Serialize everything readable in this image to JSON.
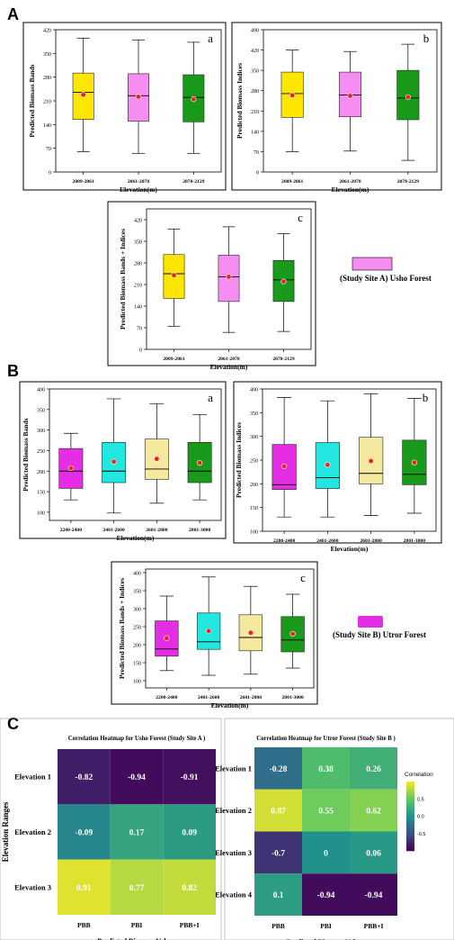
{
  "figure_labels": {
    "A": "A",
    "B": "B",
    "C": "C"
  },
  "legend_site_a": "(Study Site A) Usho Forest",
  "legend_site_b": "(Study Site B) Utror Forest",
  "colors": {
    "yellow": "#ffe600",
    "pink": "#f68df0",
    "green": "#1a9a1a",
    "magenta": "#e62de6",
    "cyan": "#22e6e0",
    "beige": "#f5e9a0",
    "mean": "#e8241c"
  },
  "chart_data": [
    {
      "id": "A-a",
      "type": "box",
      "letter": "a",
      "xlabel": "Elevation(m)",
      "ylabel": "Predicted Biomass Bands",
      "ylim": [
        0,
        420
      ],
      "yticks": [
        0,
        70,
        140,
        210,
        280,
        350,
        420
      ],
      "categories": [
        "2009-2061",
        "2061-2078",
        "2078-2129"
      ],
      "boxes": [
        {
          "min": 60,
          "q1": 155,
          "median": 235,
          "q3": 292,
          "max": 395,
          "mean": 228,
          "color": "#ffe600"
        },
        {
          "min": 55,
          "q1": 150,
          "median": 225,
          "q3": 290,
          "max": 390,
          "mean": 222,
          "color": "#f68df0"
        },
        {
          "min": 55,
          "q1": 148,
          "median": 220,
          "q3": 287,
          "max": 383,
          "mean": 215,
          "color": "#1a9a1a"
        }
      ]
    },
    {
      "id": "A-b",
      "type": "box",
      "letter": "b",
      "xlabel": "Elevation(m)",
      "ylabel": "Predicted Biomass Indices",
      "ylim": [
        0,
        490
      ],
      "yticks": [
        0,
        70,
        140,
        210,
        280,
        350,
        420,
        490
      ],
      "categories": [
        "2009-2061",
        "2061-2078",
        "2078-2129"
      ],
      "boxes": [
        {
          "min": 70,
          "q1": 188,
          "median": 270,
          "q3": 344,
          "max": 420,
          "mean": 264,
          "color": "#ffe600"
        },
        {
          "min": 72,
          "q1": 190,
          "median": 265,
          "q3": 344,
          "max": 415,
          "mean": 262,
          "color": "#f68df0"
        },
        {
          "min": 40,
          "q1": 180,
          "median": 255,
          "q3": 350,
          "max": 440,
          "mean": 258,
          "color": "#1a9a1a"
        }
      ]
    },
    {
      "id": "A-c",
      "type": "box",
      "letter": "c",
      "xlabel": "Elevation(m)",
      "ylabel": "Predicted Biomass Bands + Indices",
      "ylim": [
        0,
        455
      ],
      "yticks": [
        0,
        70,
        140,
        210,
        280,
        350,
        420
      ],
      "categories": [
        "2009-2061",
        "2061-2078",
        "2078-2129"
      ],
      "boxes": [
        {
          "min": 75,
          "q1": 165,
          "median": 245,
          "q3": 307,
          "max": 390,
          "mean": 240,
          "color": "#ffe600"
        },
        {
          "min": 55,
          "q1": 155,
          "median": 235,
          "q3": 305,
          "max": 397,
          "mean": 235,
          "color": "#f68df0"
        },
        {
          "min": 58,
          "q1": 155,
          "median": 225,
          "q3": 288,
          "max": 375,
          "mean": 220,
          "color": "#1a9a1a"
        }
      ]
    },
    {
      "id": "B-a",
      "type": "box",
      "letter": "a",
      "xlabel": "Elevation(m)",
      "ylabel": "Predicted Biomass Bands",
      "ylim": [
        80,
        400
      ],
      "yticks": [
        100,
        150,
        200,
        250,
        300,
        350,
        400
      ],
      "categories": [
        "2200-2400",
        "2401-2600",
        "2601-2800",
        "2801-3000"
      ],
      "boxes": [
        {
          "min": 130,
          "q1": 158,
          "median": 200,
          "q3": 255,
          "max": 292,
          "mean": 207,
          "color": "#e62de6"
        },
        {
          "min": 98,
          "q1": 172,
          "median": 200,
          "q3": 270,
          "max": 376,
          "mean": 223,
          "color": "#22e6e0"
        },
        {
          "min": 122,
          "q1": 180,
          "median": 205,
          "q3": 278,
          "max": 364,
          "mean": 230,
          "color": "#f5e9a0"
        },
        {
          "min": 130,
          "q1": 172,
          "median": 200,
          "q3": 270,
          "max": 338,
          "mean": 220,
          "color": "#1a9a1a"
        }
      ]
    },
    {
      "id": "B-b",
      "type": "box",
      "letter": "b",
      "xlabel": "Elevation(m)",
      "ylabel": "Predicted Biomass Indices",
      "ylim": [
        100,
        400
      ],
      "yticks": [
        100,
        150,
        200,
        250,
        300,
        350,
        400
      ],
      "categories": [
        "2200-2400",
        "2401-2600",
        "2601-2800",
        "2801-3000"
      ],
      "boxes": [
        {
          "min": 130,
          "q1": 188,
          "median": 198,
          "q3": 283,
          "max": 382,
          "mean": 237,
          "color": "#e62de6"
        },
        {
          "min": 130,
          "q1": 190,
          "median": 213,
          "q3": 287,
          "max": 375,
          "mean": 240,
          "color": "#22e6e0"
        },
        {
          "min": 133,
          "q1": 200,
          "median": 222,
          "q3": 298,
          "max": 390,
          "mean": 248,
          "color": "#f5e9a0"
        },
        {
          "min": 138,
          "q1": 198,
          "median": 220,
          "q3": 292,
          "max": 380,
          "mean": 245,
          "color": "#1a9a1a"
        }
      ]
    },
    {
      "id": "B-c",
      "type": "box",
      "letter": "c",
      "xlabel": "Elevation(m)",
      "ylabel": "Predicted Biomass Bands + Indices",
      "ylim": [
        80,
        410
      ],
      "yticks": [
        100,
        150,
        200,
        250,
        300,
        350,
        400
      ],
      "categories": [
        "2200-2400",
        "2401-2600",
        "2601-2800",
        "2801-3000"
      ],
      "boxes": [
        {
          "min": 128,
          "q1": 168,
          "median": 188,
          "q3": 266,
          "max": 335,
          "mean": 218,
          "color": "#e62de6"
        },
        {
          "min": 115,
          "q1": 187,
          "median": 208,
          "q3": 288,
          "max": 388,
          "mean": 238,
          "color": "#22e6e0"
        },
        {
          "min": 118,
          "q1": 183,
          "median": 220,
          "q3": 283,
          "max": 362,
          "mean": 233,
          "color": "#f5e9a0"
        },
        {
          "min": 135,
          "q1": 180,
          "median": 213,
          "q3": 278,
          "max": 340,
          "mean": 230,
          "color": "#1a9a1a"
        }
      ]
    },
    {
      "id": "C-1",
      "type": "heatmap",
      "title": "Correlation Heatmap for Usho Forest (Study Site A )",
      "xlabel": "Predicted Biomass Values",
      "ylabel": "Elevation Ranges",
      "columns": [
        "PBB",
        "PBI",
        "PBB+I"
      ],
      "rows": [
        "Elevation 1",
        "Elevation 2",
        "Elevation 3"
      ],
      "values": [
        [
          -0.82,
          -0.94,
          -0.91
        ],
        [
          -0.09,
          0.17,
          0.09
        ],
        [
          0.91,
          0.77,
          0.82
        ]
      ],
      "labels": [
        [
          "-0.82",
          "-0.94",
          "-0.91"
        ],
        [
          "-0.09",
          "0.17",
          "0.09"
        ],
        [
          "0.91",
          "0.77",
          "0.82"
        ]
      ]
    },
    {
      "id": "C-2",
      "type": "heatmap",
      "title": "Correlation Heatmap for Utror Forest (Study Site B )",
      "xlabel": "Predicted Biomass Values",
      "columns": [
        "PBB",
        "PBI",
        "PBB+I"
      ],
      "rows": [
        "Elevation 1",
        "Elevation 2",
        "Elevation 3",
        "Elevation 4"
      ],
      "values": [
        [
          -0.28,
          0.38,
          0.26
        ],
        [
          0.87,
          0.55,
          0.62
        ],
        [
          -0.7,
          0,
          0.06
        ],
        [
          0.1,
          -0.94,
          -0.94
        ]
      ],
      "labels": [
        [
          "-0.28",
          "0.38",
          "0.26"
        ],
        [
          "0.87",
          "0.55",
          "0.62"
        ],
        [
          "-0.7",
          "0",
          "0.06"
        ],
        [
          "0.1",
          "-0.94",
          "-0.94"
        ]
      ],
      "colorbar": {
        "title": "Correlation",
        "ticks": [
          0.5,
          0.0,
          -0.5
        ],
        "tick_labels": [
          "0.5",
          "0.0",
          "-0.5"
        ]
      }
    }
  ]
}
